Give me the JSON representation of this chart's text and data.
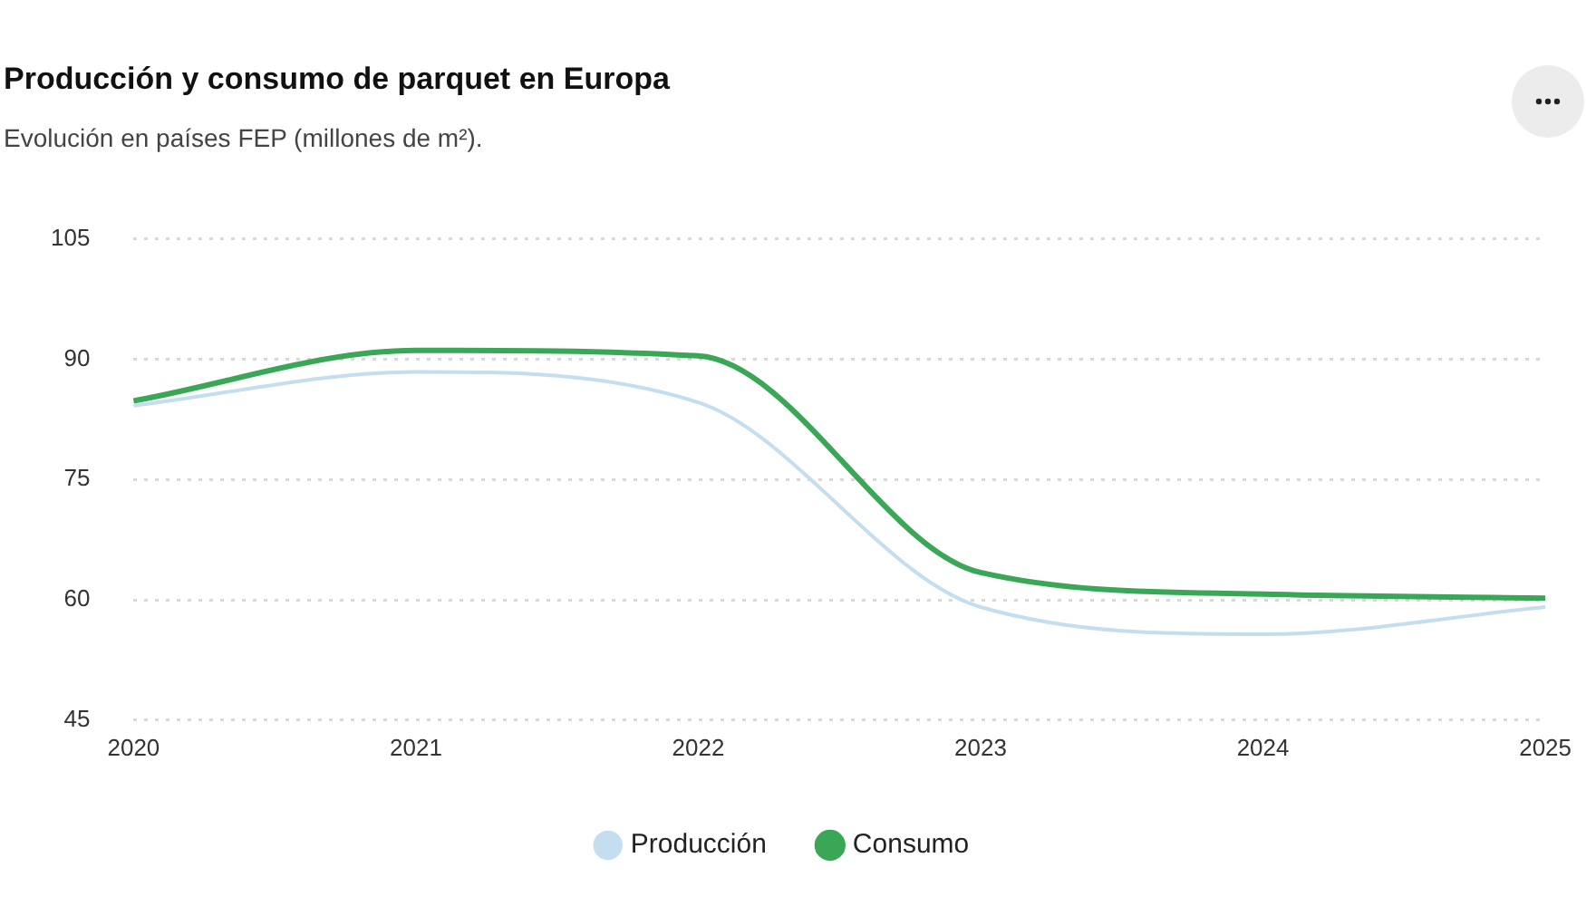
{
  "chart_data": {
    "type": "line",
    "title": "Producción y consumo de parquet en Europa",
    "subtitle": "Evolución en países FEP (millones de m²).",
    "categories": [
      "2020",
      "2021",
      "2022",
      "2023",
      "2024",
      "2025"
    ],
    "series": [
      {
        "name": "Producción",
        "color": "#c4def0",
        "values": [
          84.2,
          88.4,
          84.6,
          59.1,
          55.7,
          59.1
        ]
      },
      {
        "name": "Consumo",
        "color": "#3aa757",
        "values": [
          84.8,
          91.1,
          90.4,
          63.4,
          60.7,
          60.2
        ]
      }
    ],
    "ylim": [
      45,
      105
    ],
    "yticks": [
      45,
      60,
      75,
      90,
      105
    ],
    "grid": "y",
    "legend": "bottom",
    "marker": "none",
    "line_style": "solid"
  }
}
